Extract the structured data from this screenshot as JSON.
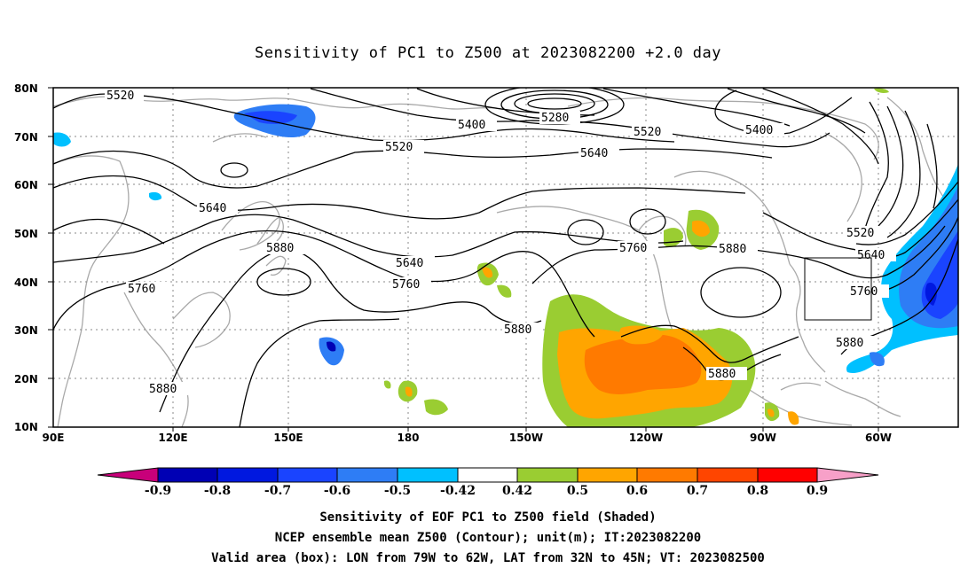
{
  "title": "Sensitivity of PC1 to Z500 at 2023082200 +2.0 day",
  "lat_labels": [
    "80N",
    "70N",
    "60N",
    "50N",
    "40N",
    "30N",
    "20N",
    "10N"
  ],
  "lon_labels": [
    "90E",
    "120E",
    "150E",
    "180",
    "150W",
    "120W",
    "90W",
    "60W"
  ],
  "contour_labels": [
    "5520",
    "5280",
    "5400",
    "5520",
    "5400",
    "5520",
    "5640",
    "5640",
    "5880",
    "5640",
    "5760",
    "5760",
    "5880",
    "5520",
    "5640",
    "5760",
    "5760",
    "5880",
    "5880",
    "5880",
    "5880"
  ],
  "colorbar": {
    "labels": [
      "-0.9",
      "-0.8",
      "-0.7",
      "-0.6",
      "-0.5",
      "-0.42",
      "0.42",
      "0.5",
      "0.6",
      "0.7",
      "0.8",
      "0.9"
    ],
    "colors": [
      "#c8007a",
      "#0000b4",
      "#0018e0",
      "#1a44ff",
      "#2e7df5",
      "#00c0ff",
      "#ffffff",
      "#9acd32",
      "#ffa500",
      "#ff7a00",
      "#ff4500",
      "#ff0000",
      "#f7a0c8"
    ]
  },
  "footer": {
    "line1": "Sensitivity of EOF PC1 to Z500 field (Shaded)",
    "line2": "NCEP ensemble mean Z500 (Contour); unit(m); IT:2023082200",
    "line3": "Valid area (box): LON from 79W to 62W, LAT from 32N to 45N; VT: 2023082500"
  }
}
